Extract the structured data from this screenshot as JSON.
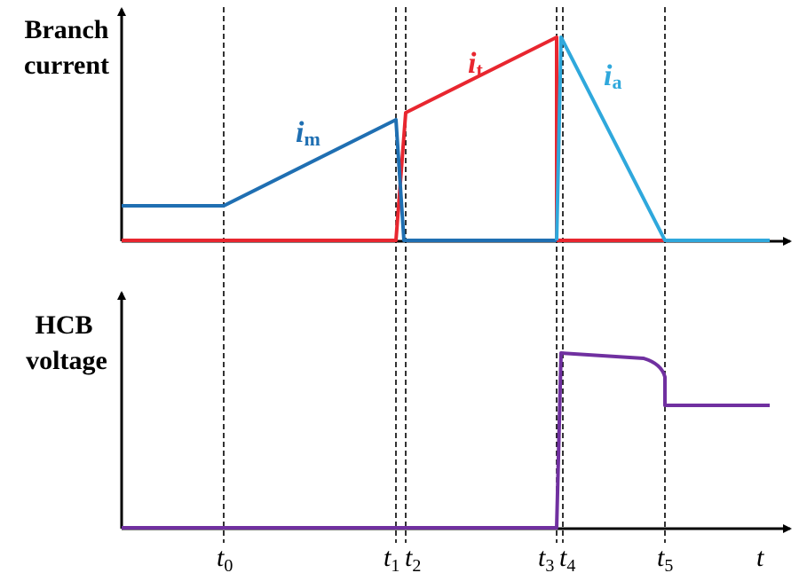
{
  "axis_labels": {
    "top": [
      "Branch",
      "current"
    ],
    "bottom": [
      "HCB",
      "voltage"
    ]
  },
  "curve_labels": [
    {
      "symbol": "i",
      "subscript": "m"
    },
    {
      "symbol": "i",
      "subscript": "t"
    },
    {
      "symbol": "i",
      "subscript": "a"
    }
  ],
  "time_labels": [
    {
      "symbol": "t",
      "subscript": "0"
    },
    {
      "symbol": "t",
      "subscript": "1"
    },
    {
      "symbol": "t",
      "subscript": "2"
    },
    {
      "symbol": "t",
      "subscript": "3"
    },
    {
      "symbol": "t",
      "subscript": "4"
    },
    {
      "symbol": "t",
      "subscript": "5"
    }
  ],
  "time_axis": "t"
}
